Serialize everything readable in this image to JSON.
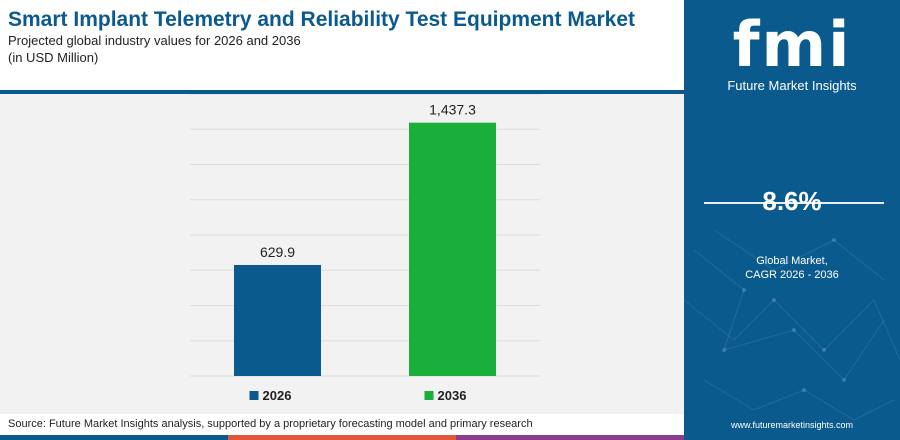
{
  "header": {
    "title": "Smart Implant Telemetry and Reliability Test Equipment Market",
    "subtitle_line1": "Projected global industry values for 2026 and 2036",
    "subtitle_line2": "(in USD Million)"
  },
  "chart_data": {
    "type": "bar",
    "categories": [
      "2026",
      "2036"
    ],
    "values": [
      629.9,
      1437.3
    ],
    "value_labels": [
      "629.9",
      "1,437.3"
    ],
    "colors": [
      "#0b5a8e",
      "#1aaf3a"
    ],
    "ylim": [
      0,
      1600
    ],
    "grid": true,
    "legend": "bottom"
  },
  "footer": {
    "source": "Source: Future Market Insights analysis, supported by a proprietary forecasting model and primary research",
    "bar_colors": [
      "#0b5a8e",
      "#e0573a",
      "#8c3c8c"
    ]
  },
  "side_panel": {
    "logo_letters": "fmi",
    "logo_name": "Future Market Insights",
    "cagr_value": "8.6%",
    "cagr_label_line1": "Global Market,",
    "cagr_label_line2": "CAGR 2026 - 2036",
    "website": "www.futuremarketinsights.com",
    "background": "#0b5a8e"
  }
}
